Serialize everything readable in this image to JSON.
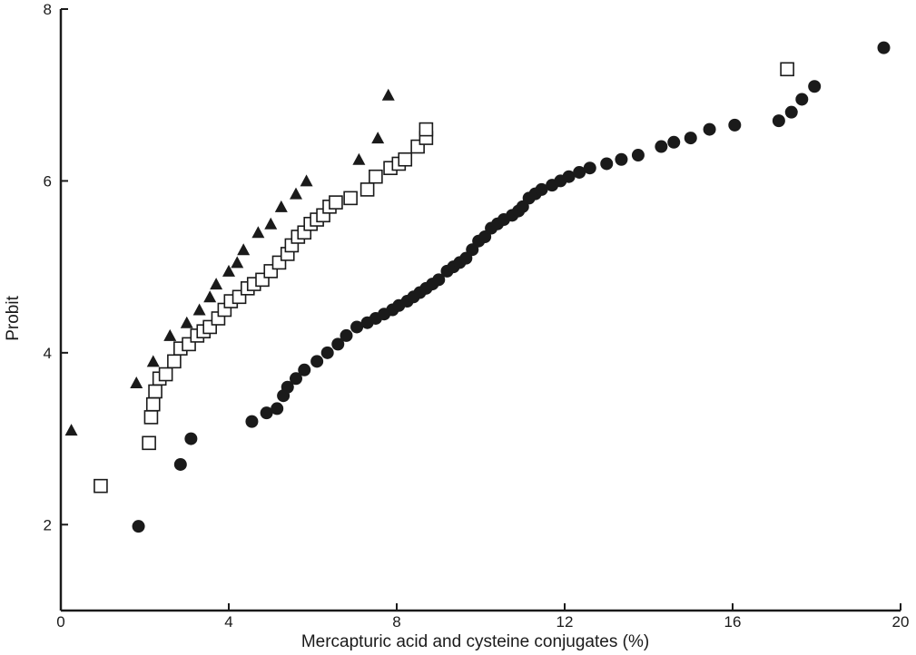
{
  "chart_data": {
    "type": "scatter",
    "xlabel": "Mercapturic acid and cysteine conjugates (%)",
    "ylabel": "Probit",
    "xlim": [
      0,
      20
    ],
    "ylim": [
      1,
      8
    ],
    "x_ticks": [
      0,
      4,
      8,
      12,
      16,
      20
    ],
    "y_ticks": [
      2,
      4,
      6,
      8
    ],
    "x_tick_labels": [
      "0",
      "4",
      "8",
      "12",
      "16",
      "20"
    ],
    "y_tick_labels": [
      "2",
      "4",
      "6",
      "8"
    ],
    "grid": false,
    "legend": "none",
    "series": [
      {
        "marker": "filled-triangle",
        "color": "#1a1a1a",
        "points": [
          [
            0.25,
            3.1
          ],
          [
            1.8,
            3.65
          ],
          [
            2.2,
            3.9
          ],
          [
            2.6,
            4.2
          ],
          [
            3.0,
            4.35
          ],
          [
            3.3,
            4.5
          ],
          [
            3.55,
            4.65
          ],
          [
            3.7,
            4.8
          ],
          [
            4.0,
            4.95
          ],
          [
            4.2,
            5.05
          ],
          [
            4.35,
            5.2
          ],
          [
            4.7,
            5.4
          ],
          [
            5.0,
            5.5
          ],
          [
            5.25,
            5.7
          ],
          [
            5.6,
            5.85
          ],
          [
            5.85,
            6.0
          ],
          [
            7.1,
            6.25
          ],
          [
            7.55,
            6.5
          ],
          [
            7.8,
            7.0
          ]
        ]
      },
      {
        "marker": "open-square",
        "color": "#1a1a1a",
        "points": [
          [
            0.95,
            2.45
          ],
          [
            2.1,
            2.95
          ],
          [
            2.15,
            3.25
          ],
          [
            2.2,
            3.4
          ],
          [
            2.25,
            3.55
          ],
          [
            2.35,
            3.7
          ],
          [
            2.5,
            3.75
          ],
          [
            2.7,
            3.9
          ],
          [
            2.85,
            4.05
          ],
          [
            3.05,
            4.1
          ],
          [
            3.25,
            4.2
          ],
          [
            3.4,
            4.25
          ],
          [
            3.55,
            4.3
          ],
          [
            3.75,
            4.4
          ],
          [
            3.9,
            4.5
          ],
          [
            4.05,
            4.6
          ],
          [
            4.25,
            4.65
          ],
          [
            4.45,
            4.75
          ],
          [
            4.6,
            4.8
          ],
          [
            4.8,
            4.85
          ],
          [
            5.0,
            4.95
          ],
          [
            5.2,
            5.05
          ],
          [
            5.4,
            5.15
          ],
          [
            5.5,
            5.25
          ],
          [
            5.65,
            5.35
          ],
          [
            5.8,
            5.4
          ],
          [
            5.95,
            5.5
          ],
          [
            6.1,
            5.55
          ],
          [
            6.25,
            5.6
          ],
          [
            6.4,
            5.7
          ],
          [
            6.55,
            5.75
          ],
          [
            6.9,
            5.8
          ],
          [
            7.3,
            5.9
          ],
          [
            7.5,
            6.05
          ],
          [
            7.85,
            6.15
          ],
          [
            8.05,
            6.2
          ],
          [
            8.2,
            6.25
          ],
          [
            8.5,
            6.4
          ],
          [
            8.7,
            6.5
          ],
          [
            8.7,
            6.6
          ],
          [
            17.3,
            7.3
          ]
        ]
      },
      {
        "marker": "filled-circle",
        "color": "#1a1a1a",
        "points": [
          [
            1.85,
            1.98
          ],
          [
            2.85,
            2.7
          ],
          [
            3.1,
            3.0
          ],
          [
            4.55,
            3.2
          ],
          [
            4.9,
            3.3
          ],
          [
            5.15,
            3.35
          ],
          [
            5.3,
            3.5
          ],
          [
            5.4,
            3.6
          ],
          [
            5.6,
            3.7
          ],
          [
            5.8,
            3.8
          ],
          [
            6.1,
            3.9
          ],
          [
            6.35,
            4.0
          ],
          [
            6.6,
            4.1
          ],
          [
            6.8,
            4.2
          ],
          [
            7.05,
            4.3
          ],
          [
            7.3,
            4.35
          ],
          [
            7.5,
            4.4
          ],
          [
            7.7,
            4.45
          ],
          [
            7.9,
            4.5
          ],
          [
            8.05,
            4.55
          ],
          [
            8.25,
            4.6
          ],
          [
            8.4,
            4.65
          ],
          [
            8.55,
            4.7
          ],
          [
            8.7,
            4.75
          ],
          [
            8.85,
            4.8
          ],
          [
            9.0,
            4.85
          ],
          [
            9.2,
            4.95
          ],
          [
            9.35,
            5.0
          ],
          [
            9.5,
            5.05
          ],
          [
            9.65,
            5.1
          ],
          [
            9.8,
            5.2
          ],
          [
            9.95,
            5.3
          ],
          [
            10.1,
            5.35
          ],
          [
            10.25,
            5.45
          ],
          [
            10.4,
            5.5
          ],
          [
            10.55,
            5.55
          ],
          [
            10.75,
            5.6
          ],
          [
            10.9,
            5.65
          ],
          [
            11.0,
            5.7
          ],
          [
            11.15,
            5.8
          ],
          [
            11.3,
            5.85
          ],
          [
            11.45,
            5.9
          ],
          [
            11.7,
            5.95
          ],
          [
            11.9,
            6.0
          ],
          [
            12.1,
            6.05
          ],
          [
            12.35,
            6.1
          ],
          [
            12.6,
            6.15
          ],
          [
            13.0,
            6.2
          ],
          [
            13.35,
            6.25
          ],
          [
            13.75,
            6.3
          ],
          [
            14.3,
            6.4
          ],
          [
            14.6,
            6.45
          ],
          [
            15.0,
            6.5
          ],
          [
            15.45,
            6.6
          ],
          [
            16.05,
            6.65
          ],
          [
            17.1,
            6.7
          ],
          [
            17.4,
            6.8
          ],
          [
            17.65,
            6.95
          ],
          [
            17.95,
            7.1
          ],
          [
            19.6,
            7.55
          ]
        ]
      }
    ]
  }
}
